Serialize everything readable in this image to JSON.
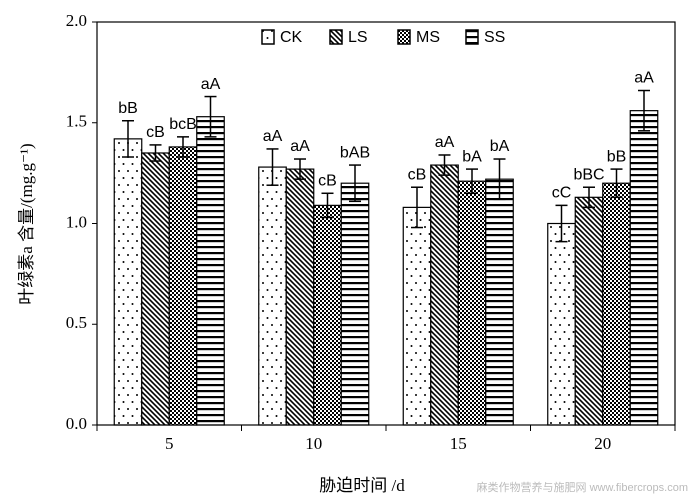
{
  "chart_data": {
    "type": "bar",
    "x_label": "胁迫时间 /d",
    "y_label": "叶绿素a 含量/(mg.g⁻¹)",
    "watermark": "麻类作物营养与施肥网 www.fibercrops.com",
    "categories": [
      "5",
      "10",
      "15",
      "20"
    ],
    "series": [
      {
        "name": "CK",
        "pattern": "dots",
        "color": "#000000",
        "values": [
          1.42,
          1.28,
          1.08,
          1.0
        ],
        "errors": [
          0.09,
          0.09,
          0.1,
          0.09
        ],
        "labels": [
          "bB",
          "aA",
          "cB",
          "cC"
        ]
      },
      {
        "name": "LS",
        "pattern": "diagonal",
        "color": "#000000",
        "values": [
          1.35,
          1.27,
          1.29,
          1.13
        ],
        "errors": [
          0.04,
          0.05,
          0.05,
          0.05
        ],
        "labels": [
          "cB",
          "aA",
          "aA",
          "bBC"
        ]
      },
      {
        "name": "MS",
        "pattern": "checker",
        "color": "#000000",
        "values": [
          1.38,
          1.09,
          1.21,
          1.2
        ],
        "errors": [
          0.05,
          0.06,
          0.06,
          0.07
        ],
        "labels": [
          "bcB",
          "cB",
          "bA",
          "bB"
        ]
      },
      {
        "name": "SS",
        "pattern": "horizontal",
        "color": "#000000",
        "values": [
          1.53,
          1.2,
          1.22,
          1.56
        ],
        "errors": [
          0.1,
          0.09,
          0.1,
          0.1
        ],
        "labels": [
          "aA",
          "bAB",
          "bA",
          "aA"
        ]
      }
    ],
    "ylim": [
      0,
      2
    ],
    "yticks": [
      {
        "value": 0,
        "label": "0.0"
      },
      0.5,
      {
        "value": 1,
        "label": "1.0"
      },
      1.5,
      {
        "value": 2,
        "label": "2.0"
      }
    ],
    "legend": "top",
    "grid": false
  }
}
